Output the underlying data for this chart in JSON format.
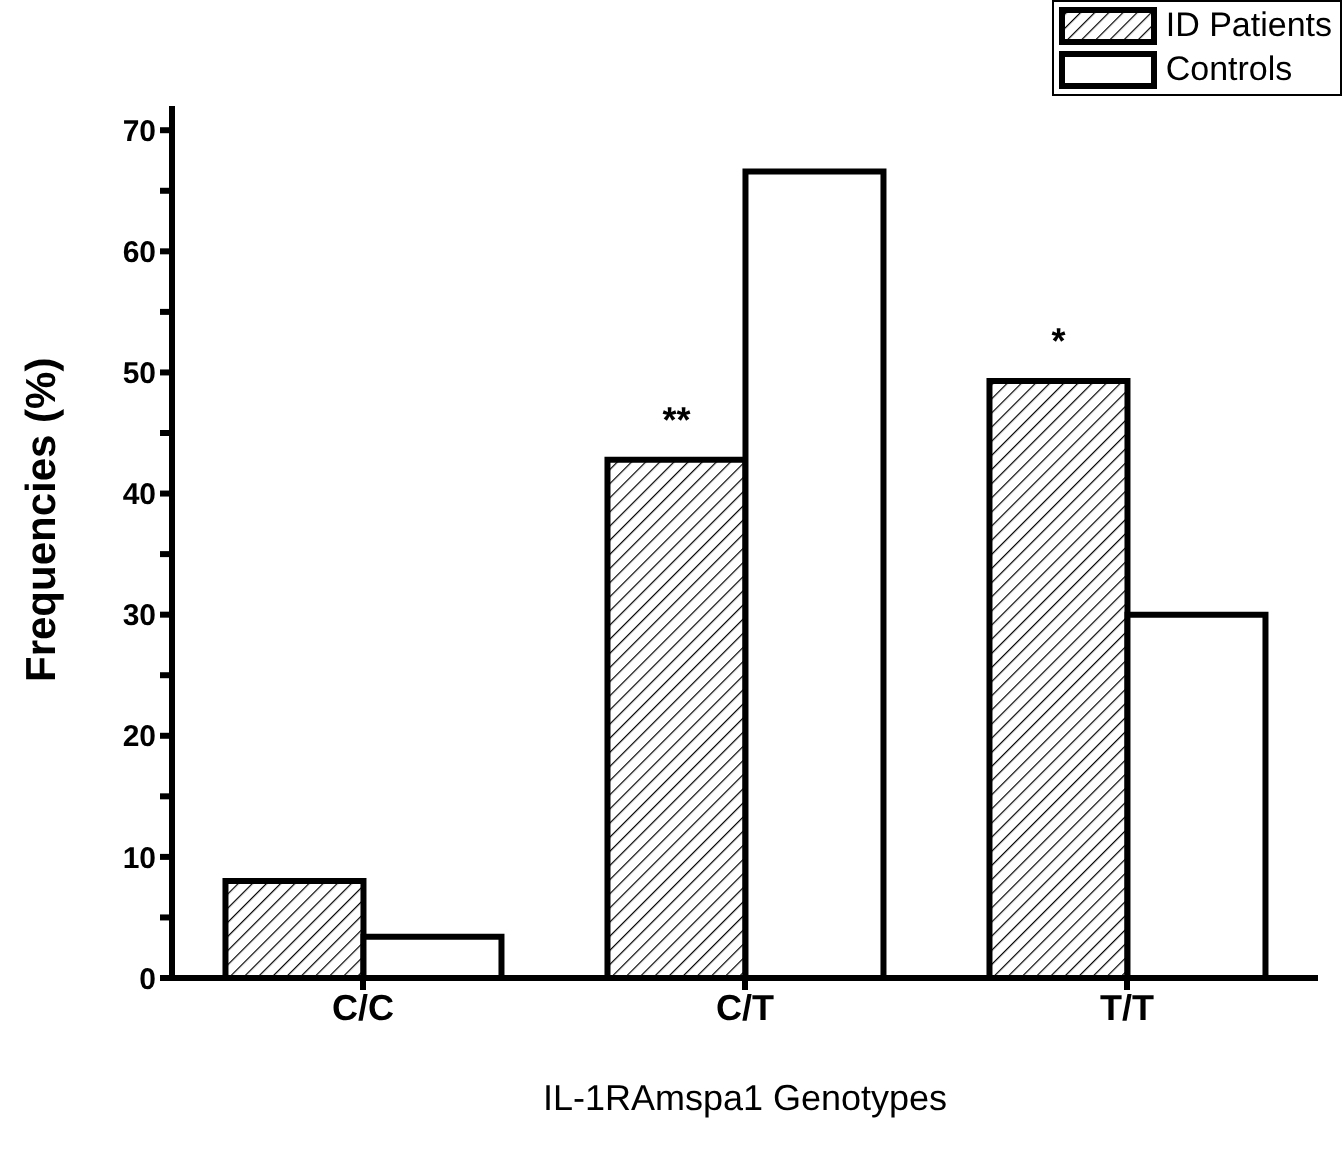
{
  "chart_data": {
    "type": "bar",
    "xlabel": "IL-1RAmspa1 Genotypes",
    "ylabel": "Frequencies (%)",
    "categories": [
      "C/C",
      "C/T",
      "T/T"
    ],
    "series": [
      {
        "name": "ID Patients",
        "color": "#000000",
        "values": [
          8.0,
          42.8,
          49.3
        ]
      },
      {
        "name": "Controls",
        "color": "#ffffff",
        "values": [
          3.4,
          66.6,
          30.0
        ]
      }
    ],
    "ylim": [
      0,
      72
    ],
    "yticks": [
      0,
      {
        "value": 5,
        "label": null
      },
      10,
      {
        "value": 15,
        "label": null
      },
      20,
      {
        "value": 25,
        "label": null
      },
      30,
      {
        "value": 35,
        "label": null
      },
      40,
      {
        "value": 45,
        "label": null
      },
      50,
      {
        "value": 55,
        "label": null
      },
      60,
      {
        "value": 65,
        "label": null
      },
      70
    ],
    "annotations": [
      {
        "text": "**",
        "x": "C/T",
        "y": 42.8
      },
      {
        "text": "*",
        "x": "T/T",
        "y": 49.3
      }
    ],
    "legend": "top right",
    "grid": false
  }
}
